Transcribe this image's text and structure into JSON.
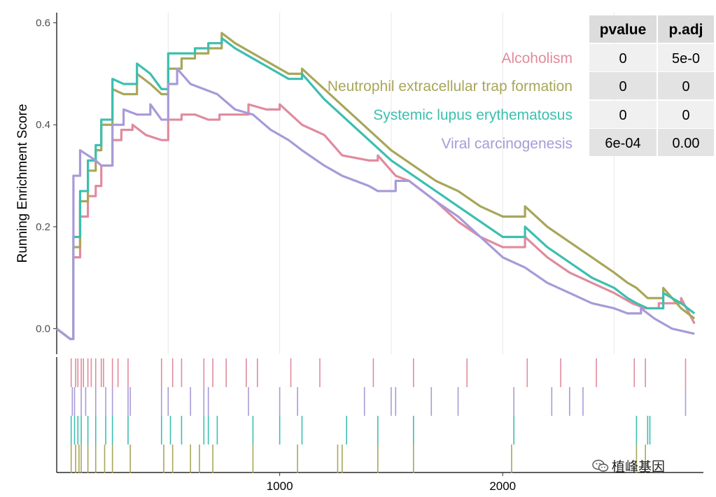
{
  "chart_data": {
    "type": "line",
    "ylabel": "Running Enrichment Score",
    "xlabel": "",
    "xlim": [
      0,
      2900
    ],
    "ylim": [
      -0.05,
      0.62
    ],
    "yticks": [
      0.0,
      0.2,
      0.4,
      0.6
    ],
    "ytick_labels": [
      "0.0",
      "0.2",
      "0.4",
      "0.6"
    ],
    "xticks": [
      1000,
      2000
    ],
    "xtick_labels": [
      "1000",
      "2000"
    ],
    "grid": "vertical-major",
    "legend_position": "top-right, inside plot",
    "series": [
      {
        "name": "Alcoholism",
        "color": "#e08b9d",
        "x": [
          0,
          60,
          75,
          105,
          140,
          175,
          200,
          250,
          290,
          340,
          400,
          470,
          500,
          560,
          620,
          680,
          730,
          800,
          860,
          940,
          1000,
          1100,
          1200,
          1280,
          1400,
          1440,
          1520,
          1580,
          1700,
          1800,
          1900,
          2000,
          2100,
          2200,
          2300,
          2400,
          2500,
          2580,
          2640,
          2700,
          2800,
          2860
        ],
        "y": [
          0.0,
          -0.02,
          0.14,
          0.22,
          0.26,
          0.28,
          0.32,
          0.37,
          0.39,
          0.4,
          0.38,
          0.37,
          0.41,
          0.42,
          0.42,
          0.41,
          0.42,
          0.42,
          0.44,
          0.43,
          0.44,
          0.4,
          0.38,
          0.34,
          0.33,
          0.34,
          0.3,
          0.29,
          0.25,
          0.21,
          0.18,
          0.16,
          0.18,
          0.14,
          0.11,
          0.09,
          0.07,
          0.05,
          0.04,
          0.05,
          0.06,
          0.01
        ]
      },
      {
        "name": "Neutrophil extracellular trap formation",
        "color": "#a8a65a",
        "x": [
          0,
          60,
          75,
          105,
          140,
          175,
          200,
          250,
          300,
          360,
          420,
          470,
          500,
          560,
          620,
          680,
          740,
          800,
          880,
          960,
          1040,
          1100,
          1200,
          1300,
          1400,
          1500,
          1600,
          1700,
          1800,
          1900,
          2000,
          2100,
          2200,
          2300,
          2400,
          2500,
          2560,
          2600,
          2650,
          2720,
          2800,
          2860
        ],
        "y": [
          0.0,
          -0.02,
          0.16,
          0.25,
          0.31,
          0.35,
          0.4,
          0.47,
          0.46,
          0.5,
          0.48,
          0.46,
          0.51,
          0.53,
          0.54,
          0.55,
          0.58,
          0.56,
          0.54,
          0.52,
          0.5,
          0.51,
          0.47,
          0.43,
          0.39,
          0.35,
          0.32,
          0.29,
          0.27,
          0.24,
          0.22,
          0.24,
          0.2,
          0.17,
          0.14,
          0.11,
          0.09,
          0.08,
          0.06,
          0.08,
          0.04,
          0.02
        ]
      },
      {
        "name": "Systemic lupus erythematosus",
        "color": "#3cbfb0",
        "x": [
          0,
          60,
          75,
          105,
          140,
          175,
          200,
          250,
          300,
          360,
          420,
          470,
          500,
          560,
          620,
          680,
          740,
          800,
          880,
          960,
          1040,
          1100,
          1200,
          1300,
          1400,
          1500,
          1600,
          1700,
          1800,
          1900,
          2000,
          2100,
          2200,
          2300,
          2400,
          2500,
          2560,
          2600,
          2650,
          2720,
          2800,
          2860
        ],
        "y": [
          0.0,
          -0.02,
          0.18,
          0.27,
          0.33,
          0.36,
          0.41,
          0.49,
          0.48,
          0.52,
          0.5,
          0.47,
          0.54,
          0.54,
          0.55,
          0.56,
          0.57,
          0.55,
          0.53,
          0.51,
          0.49,
          0.5,
          0.45,
          0.41,
          0.37,
          0.33,
          0.3,
          0.27,
          0.24,
          0.21,
          0.18,
          0.2,
          0.16,
          0.13,
          0.1,
          0.08,
          0.06,
          0.05,
          0.04,
          0.07,
          0.05,
          0.03
        ]
      },
      {
        "name": "Viral carcinogenesis",
        "color": "#a89ad8",
        "x": [
          0,
          60,
          75,
          105,
          140,
          175,
          200,
          250,
          300,
          360,
          420,
          470,
          500,
          540,
          600,
          660,
          720,
          800,
          880,
          960,
          1040,
          1100,
          1200,
          1280,
          1400,
          1440,
          1520,
          1580,
          1700,
          1800,
          1900,
          2000,
          2100,
          2200,
          2300,
          2400,
          2500,
          2560,
          2620,
          2680,
          2760,
          2860
        ],
        "y": [
          0.0,
          -0.02,
          0.3,
          0.35,
          0.34,
          0.33,
          0.32,
          0.4,
          0.43,
          0.42,
          0.44,
          0.41,
          0.48,
          0.51,
          0.48,
          0.47,
          0.46,
          0.43,
          0.42,
          0.39,
          0.37,
          0.35,
          0.32,
          0.3,
          0.28,
          0.27,
          0.29,
          0.29,
          0.25,
          0.22,
          0.18,
          0.14,
          0.12,
          0.09,
          0.07,
          0.05,
          0.04,
          0.03,
          0.04,
          0.02,
          0.0,
          -0.01
        ]
      }
    ],
    "gene_hits": [
      {
        "series": "Alcoholism",
        "x": [
          65,
          85,
          95,
          110,
          120,
          140,
          155,
          175,
          200,
          210,
          250,
          275,
          320,
          470,
          520,
          560,
          660,
          700,
          760,
          850,
          900,
          1050,
          1180,
          1420,
          1600,
          1840,
          2110,
          2260,
          2420,
          2590,
          2640,
          2820
        ]
      },
      {
        "series": "Viral carcinogenesis",
        "x": [
          70,
          80,
          110,
          130,
          175,
          220,
          250,
          320,
          330,
          470,
          500,
          600,
          660,
          680,
          860,
          1000,
          1080,
          1380,
          1500,
          1520,
          1680,
          1800,
          2050,
          2220,
          2300,
          2360,
          2820
        ]
      },
      {
        "series": "Systemic lupus erythematosus",
        "x": [
          65,
          80,
          95,
          110,
          140,
          175,
          220,
          250,
          320,
          470,
          510,
          560,
          660,
          680,
          720,
          880,
          1000,
          1100,
          1300,
          1440,
          1600,
          2050,
          2600,
          2650,
          2660
        ]
      },
      {
        "series": "Neutrophil extracellular trap formation",
        "x": [
          65,
          85,
          100,
          110,
          140,
          175,
          215,
          250,
          330,
          480,
          520,
          600,
          640,
          700,
          880,
          1080,
          1260,
          1280,
          1440,
          1600,
          2040,
          2600,
          2640
        ]
      }
    ],
    "table": {
      "headers": [
        "pvalue",
        "p.adj"
      ],
      "rows": [
        [
          "0",
          "5e-0"
        ],
        [
          "0",
          "0"
        ],
        [
          "0",
          "0"
        ],
        [
          "6e-04",
          "0.00"
        ]
      ]
    }
  },
  "watermark": {
    "text": "植峰基因"
  }
}
